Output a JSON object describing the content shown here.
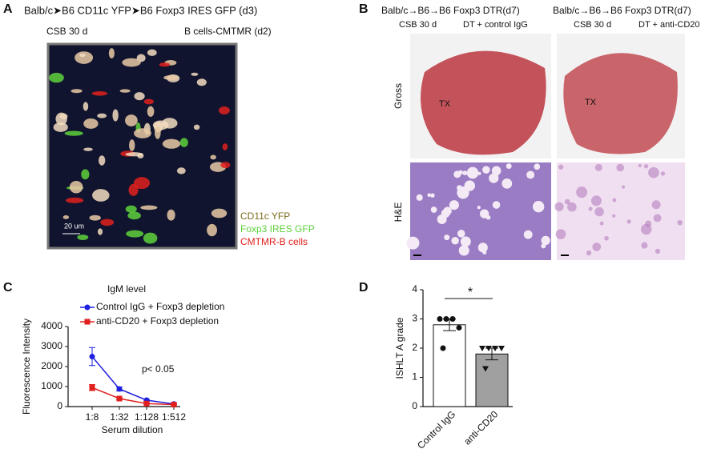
{
  "panels": {
    "a": {
      "label": "A",
      "title": "Balb/c➤B6 CD11c YFP➤B6 Foxp3 IRES GFP (d3)",
      "left_note": "CSB 30 d",
      "right_note": "B cells-CMTMR (d2)",
      "scale_bar": "20 um",
      "legend": [
        {
          "name": "CD11c YFP",
          "color": "#7d6b1e"
        },
        {
          "name": "Foxp3 IRES GFP",
          "color": "#5fd03c"
        },
        {
          "name": "CMTMR-B cells",
          "color": "#e0201c"
        }
      ]
    },
    "b": {
      "label": "B",
      "columns": [
        {
          "title": "Balb/c→B6→B6 Foxp3 DTR(d7)",
          "left_note": "CSB 30 d",
          "right_note": "DT + control IgG",
          "tx": "TX"
        },
        {
          "title": "Balb/c→B6→B6 Foxp3 DTR(d7)",
          "left_note": "CSB 30 d",
          "right_note": "DT + anti-CD20",
          "tx": "TX"
        }
      ],
      "rows": [
        "Gross",
        "H&E"
      ]
    },
    "c": {
      "label": "C"
    },
    "d": {
      "label": "D"
    }
  },
  "chart_data": [
    {
      "type": "line",
      "title": "IgM level",
      "x_label": "Serum dilution",
      "y_label": "Fluorescence Intensity",
      "annotation": "p< 0.05",
      "categories": [
        "1:8",
        "1:32",
        "1:128",
        "1:512"
      ],
      "ylim": [
        0,
        4000
      ],
      "yticks": [
        0,
        1000,
        2000,
        3000,
        4000
      ],
      "series": [
        {
          "name": "Control IgG + Foxp3 depletion",
          "color": "#1f1fe0",
          "marker": "circle",
          "values": [
            2500,
            880,
            320,
            130
          ],
          "errors": [
            450,
            100,
            50,
            20
          ]
        },
        {
          "name": "anti-CD20 + Foxp3 depletion",
          "color": "#e01f1f",
          "marker": "square",
          "values": [
            950,
            400,
            150,
            100
          ],
          "errors": [
            150,
            50,
            30,
            20
          ]
        }
      ]
    },
    {
      "type": "bar",
      "y_label": "ISHLT A grade",
      "annotation": "*",
      "categories": [
        "Control IgG",
        "anti-CD20"
      ],
      "values": [
        2.8,
        1.8
      ],
      "errors": [
        0.2,
        0.2
      ],
      "colors": [
        "#ffffff",
        "#a0a0a0"
      ],
      "points": [
        [
          3,
          3,
          3,
          2.7,
          2.0
        ],
        [
          2,
          2,
          2,
          2,
          1.3
        ]
      ],
      "ylim": [
        0,
        4
      ],
      "yticks": [
        0,
        1,
        2,
        3,
        4
      ]
    }
  ]
}
